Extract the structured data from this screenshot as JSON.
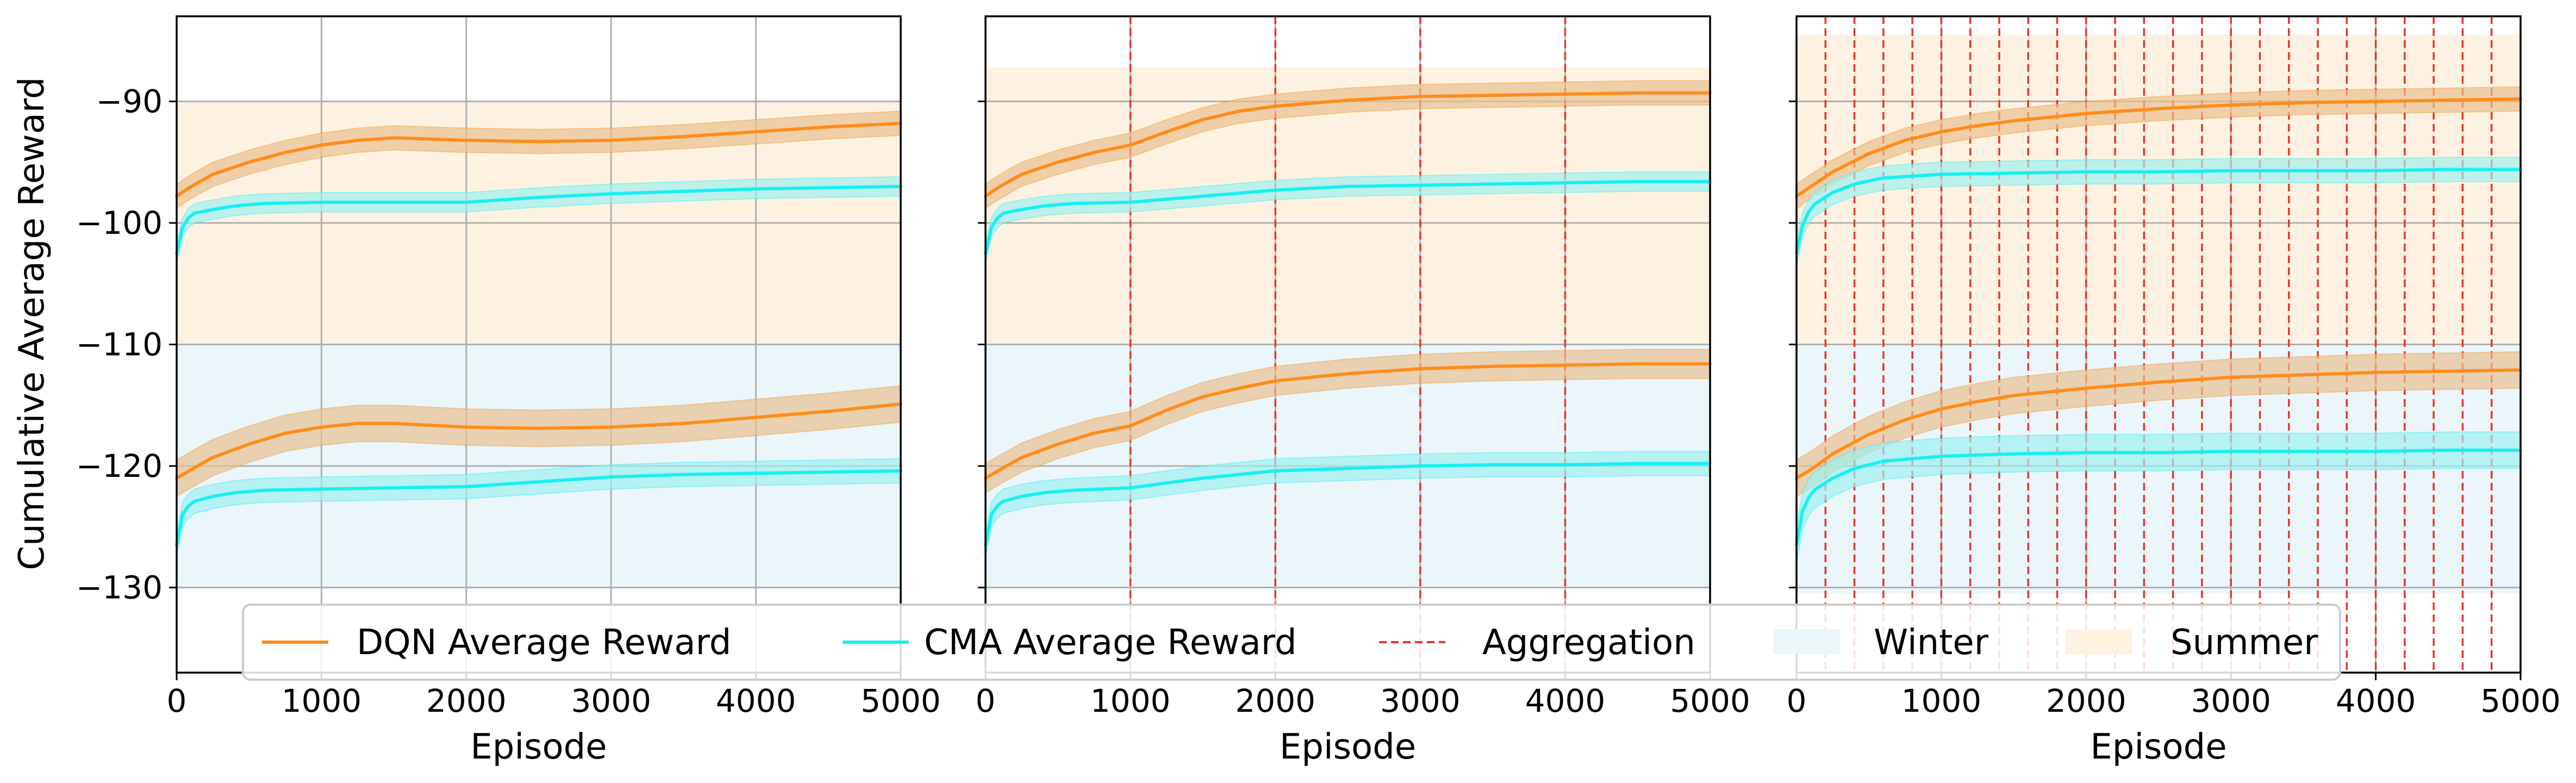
{
  "chart_data": {
    "type": "line",
    "ylabel": "Cumulative Average Reward",
    "xlim": [
      0,
      5000
    ],
    "ylim": [
      -137,
      -83
    ],
    "xticks": [
      0,
      1000,
      2000,
      3000,
      4000,
      5000
    ],
    "yticks": [
      -90,
      -100,
      -110,
      -120,
      -130
    ],
    "xtick_labels": [
      "0",
      "1000",
      "2000",
      "3000",
      "4000",
      "5000"
    ],
    "ytick_labels": [
      "−90",
      "−100",
      "−110",
      "−120",
      "−130"
    ],
    "grid": true,
    "legend_position": "bottom-center",
    "legend": [
      {
        "label": "DQN Average Reward",
        "kind": "line",
        "color": "#ff8c1a"
      },
      {
        "label": "CMA Average Reward",
        "kind": "line",
        "color": "#18f0f0"
      },
      {
        "label": "Aggregation",
        "kind": "dashed",
        "color": "#e8342c"
      },
      {
        "label": "Winter",
        "kind": "patch",
        "color": "#eaf6fa"
      },
      {
        "label": "Summer",
        "kind": "patch",
        "color": "#fdf2e1"
      }
    ],
    "colors": {
      "dqn": "#ff8c1a",
      "dqn_band": "#e8c090",
      "cma": "#18f0f0",
      "cma_band": "#9ff0f0",
      "aggregation": "#e8342c",
      "winter": "#eaf6fa",
      "summer": "#fdf2e1",
      "grid": "#b0b0b0"
    },
    "panels": [
      {
        "xlabel": "Episode",
        "summer_range": [
          -110,
          -90
        ],
        "winter_range": [
          -130,
          -110
        ],
        "aggregation_x": [],
        "series": [
          {
            "name": "DQN Average Reward",
            "season": "summer",
            "style": "dqn",
            "band": 1.0,
            "x": [
              0,
              100,
              250,
              500,
              750,
              1000,
              1250,
              1500,
              2000,
              2500,
              3000,
              3500,
              4000,
              4500,
              5000
            ],
            "y": [
              -97.8,
              -97.0,
              -96.0,
              -95.0,
              -94.2,
              -93.6,
              -93.2,
              -93.0,
              -93.2,
              -93.3,
              -93.2,
              -92.9,
              -92.5,
              -92.1,
              -91.8
            ]
          },
          {
            "name": "CMA Average Reward",
            "season": "summer",
            "style": "cma",
            "band": 0.8,
            "x": [
              0,
              20,
              60,
              120,
              250,
              400,
              600,
              1000,
              1500,
              2000,
              2500,
              3000,
              3500,
              4000,
              4500,
              5000
            ],
            "y": [
              -102.5,
              -101.0,
              -99.8,
              -99.2,
              -98.9,
              -98.6,
              -98.4,
              -98.3,
              -98.3,
              -98.3,
              -97.9,
              -97.6,
              -97.4,
              -97.2,
              -97.1,
              -97.0
            ]
          },
          {
            "name": "DQN Average Reward",
            "season": "winter",
            "style": "dqn",
            "band": 1.5,
            "x": [
              0,
              100,
              250,
              500,
              750,
              1000,
              1250,
              1500,
              2000,
              2500,
              3000,
              3500,
              4000,
              4500,
              5000
            ],
            "y": [
              -121.0,
              -120.3,
              -119.3,
              -118.2,
              -117.3,
              -116.8,
              -116.5,
              -116.5,
              -116.8,
              -116.9,
              -116.8,
              -116.5,
              -116.0,
              -115.5,
              -114.9
            ]
          },
          {
            "name": "CMA Average Reward",
            "season": "winter",
            "style": "cma",
            "band": 1.0,
            "x": [
              0,
              20,
              60,
              120,
              250,
              400,
              600,
              1000,
              1500,
              2000,
              2500,
              3000,
              3500,
              4000,
              4500,
              5000
            ],
            "y": [
              -126.5,
              -124.5,
              -123.5,
              -122.9,
              -122.5,
              -122.2,
              -122.0,
              -121.9,
              -121.8,
              -121.7,
              -121.3,
              -120.9,
              -120.7,
              -120.6,
              -120.5,
              -120.4
            ]
          }
        ]
      },
      {
        "xlabel": "Episode",
        "summer_range": [
          -110,
          -87.2
        ],
        "winter_range": [
          -130,
          -110
        ],
        "aggregation_x": [
          1000,
          2000,
          3000,
          4000
        ],
        "series": [
          {
            "name": "DQN Average Reward",
            "season": "summer",
            "style": "dqn",
            "band": 1.0,
            "x": [
              0,
              100,
              250,
              500,
              750,
              1000,
              1250,
              1500,
              1750,
              2000,
              2500,
              3000,
              3500,
              4000,
              4500,
              5000
            ],
            "y": [
              -97.8,
              -97.0,
              -96.0,
              -95.0,
              -94.2,
              -93.6,
              -92.5,
              -91.5,
              -90.8,
              -90.4,
              -89.9,
              -89.6,
              -89.5,
              -89.4,
              -89.3,
              -89.3
            ]
          },
          {
            "name": "CMA Average Reward",
            "season": "summer",
            "style": "cma",
            "band": 0.8,
            "x": [
              0,
              20,
              60,
              120,
              250,
              400,
              600,
              1000,
              1500,
              2000,
              2500,
              3000,
              3500,
              4000,
              4500,
              5000
            ],
            "y": [
              -102.5,
              -101.0,
              -99.8,
              -99.2,
              -98.9,
              -98.6,
              -98.4,
              -98.3,
              -97.8,
              -97.3,
              -97.0,
              -96.9,
              -96.8,
              -96.7,
              -96.6,
              -96.6
            ]
          },
          {
            "name": "DQN Average Reward",
            "season": "winter",
            "style": "dqn",
            "band": 1.2,
            "x": [
              0,
              100,
              250,
              500,
              750,
              1000,
              1250,
              1500,
              1750,
              2000,
              2500,
              3000,
              3500,
              4000,
              4500,
              5000
            ],
            "y": [
              -121.0,
              -120.3,
              -119.3,
              -118.2,
              -117.3,
              -116.7,
              -115.4,
              -114.3,
              -113.6,
              -113.0,
              -112.4,
              -112.0,
              -111.8,
              -111.7,
              -111.6,
              -111.6
            ]
          },
          {
            "name": "CMA Average Reward",
            "season": "winter",
            "style": "cma",
            "band": 1.0,
            "x": [
              0,
              20,
              60,
              120,
              250,
              400,
              600,
              1000,
              1500,
              2000,
              2500,
              3000,
              3500,
              4000,
              4500,
              5000
            ],
            "y": [
              -126.5,
              -124.5,
              -123.5,
              -122.9,
              -122.5,
              -122.2,
              -122.0,
              -121.8,
              -121.0,
              -120.4,
              -120.2,
              -120.0,
              -119.9,
              -119.9,
              -119.8,
              -119.8
            ]
          }
        ]
      },
      {
        "xlabel": "Episode",
        "summer_range": [
          -110,
          -84.5
        ],
        "winter_range": [
          -130.5,
          -110
        ],
        "aggregation_x": [
          200,
          400,
          600,
          800,
          1000,
          1200,
          1400,
          1600,
          1800,
          2000,
          2200,
          2400,
          2600,
          2800,
          3000,
          3200,
          3400,
          3600,
          3800,
          4000,
          4200,
          4400,
          4600,
          4800
        ],
        "series": [
          {
            "name": "DQN Average Reward",
            "season": "summer",
            "style": "dqn",
            "band": 1.0,
            "x": [
              0,
              100,
              250,
              500,
              750,
              1000,
              1250,
              1500,
              2000,
              2500,
              3000,
              3500,
              4000,
              4500,
              5000
            ],
            "y": [
              -97.8,
              -97.0,
              -95.8,
              -94.3,
              -93.2,
              -92.5,
              -92.0,
              -91.6,
              -91.0,
              -90.6,
              -90.3,
              -90.1,
              -90.0,
              -89.9,
              -89.8
            ]
          },
          {
            "name": "CMA Average Reward",
            "season": "summer",
            "style": "cma",
            "band": 1.0,
            "x": [
              0,
              20,
              60,
              120,
              250,
              400,
              600,
              1000,
              1500,
              2000,
              2500,
              3000,
              3500,
              4000,
              4500,
              5000
            ],
            "y": [
              -102.5,
              -101.0,
              -99.5,
              -98.5,
              -97.5,
              -96.8,
              -96.3,
              -96.0,
              -95.9,
              -95.8,
              -95.8,
              -95.7,
              -95.7,
              -95.7,
              -95.6,
              -95.6
            ]
          },
          {
            "name": "DQN Average Reward",
            "season": "winter",
            "style": "dqn",
            "band": 1.5,
            "x": [
              0,
              100,
              250,
              500,
              750,
              1000,
              1250,
              1500,
              2000,
              2500,
              3000,
              3500,
              4000,
              4500,
              5000
            ],
            "y": [
              -121.0,
              -120.3,
              -119.0,
              -117.4,
              -116.2,
              -115.3,
              -114.7,
              -114.2,
              -113.6,
              -113.1,
              -112.7,
              -112.5,
              -112.3,
              -112.2,
              -112.1
            ]
          },
          {
            "name": "CMA Average Reward",
            "season": "winter",
            "style": "cma",
            "band": 1.5,
            "x": [
              0,
              20,
              60,
              120,
              250,
              400,
              600,
              1000,
              1500,
              2000,
              2500,
              3000,
              3500,
              4000,
              4500,
              5000
            ],
            "y": [
              -126.5,
              -124.5,
              -123.0,
              -122.0,
              -121.0,
              -120.2,
              -119.6,
              -119.2,
              -119.0,
              -118.9,
              -118.9,
              -118.8,
              -118.8,
              -118.8,
              -118.7,
              -118.7
            ]
          }
        ]
      }
    ]
  }
}
